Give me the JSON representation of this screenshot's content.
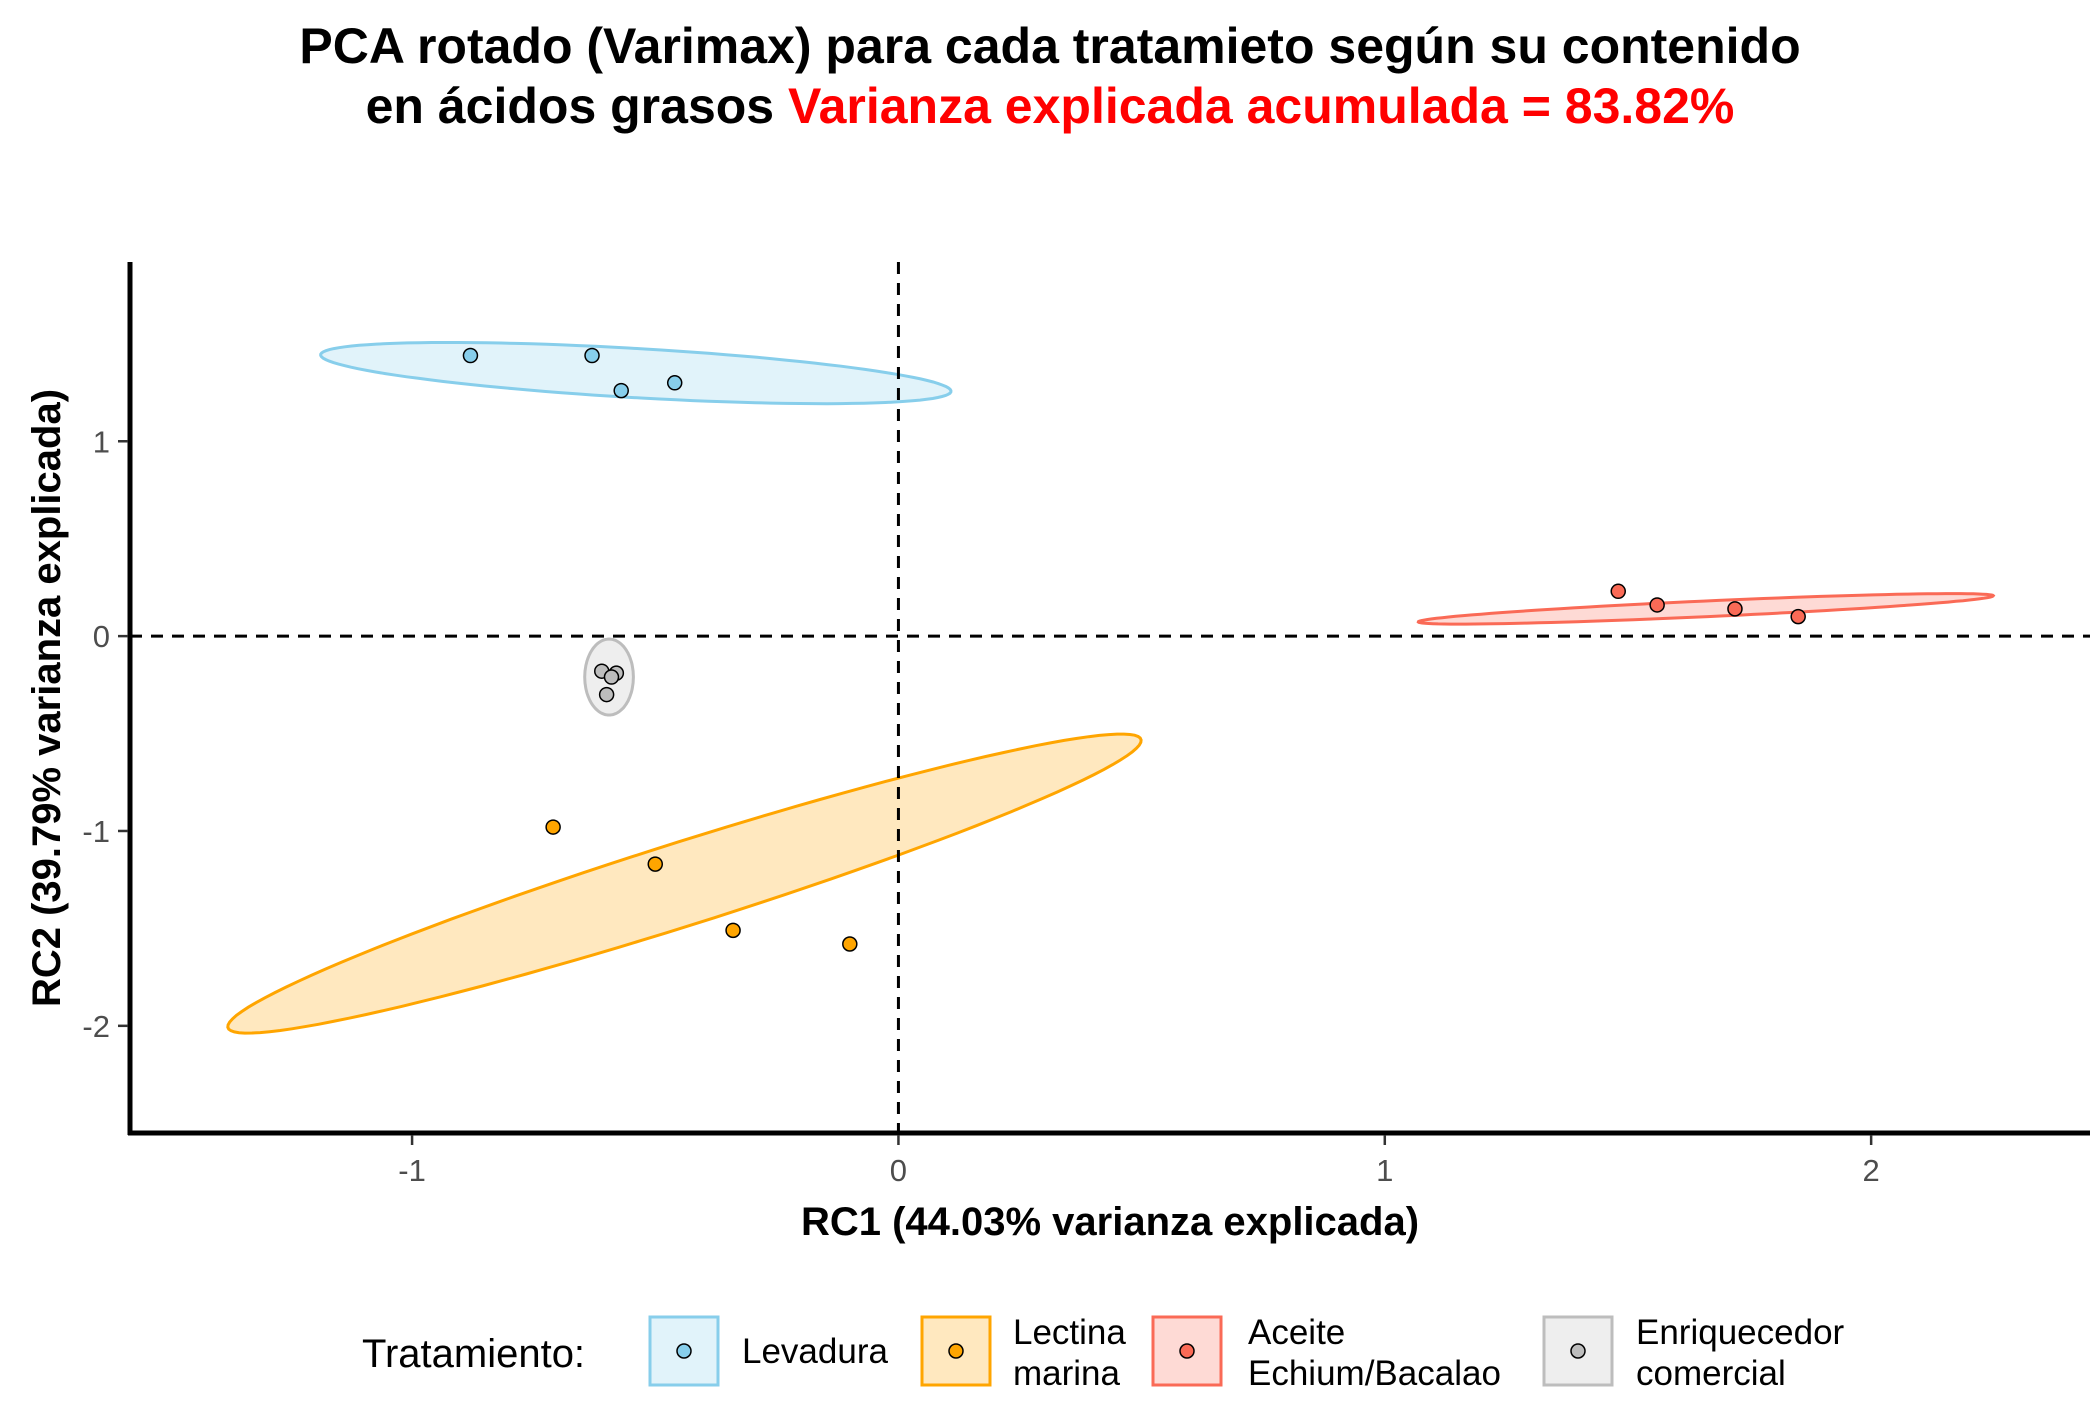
{
  "chart_data": {
    "type": "scatter",
    "title_line1": "PCA rotado (Varimax) para cada tratamieto según su contenido",
    "title_line2_black": "en ácidos grasos ",
    "title_line2_red": "Varianza explicada acumulada = 83.82%",
    "xlabel": "RC1 (44.03% varianza explicada)",
    "ylabel": "RC2 (39.79% varianza explicada)",
    "xlim": [
      -1.58,
      2.45
    ],
    "ylim": [
      -2.55,
      1.92
    ],
    "xticks": [
      -1,
      0,
      1,
      2
    ],
    "yticks": [
      -2,
      -1,
      0,
      1
    ],
    "reference_lines": {
      "x": 0,
      "y": 0,
      "style": "dashed"
    },
    "grid": false,
    "legend": {
      "title": "Tratamiento:",
      "position": "bottom"
    },
    "series": [
      {
        "name": "Levadura",
        "label_lines": [
          "Levadura"
        ],
        "color": "#87ceeb",
        "points": [
          [
            -0.88,
            1.44
          ],
          [
            -0.63,
            1.44
          ],
          [
            -0.57,
            1.26
          ],
          [
            -0.46,
            1.3
          ]
        ],
        "ellipse": {
          "center": [
            -0.54,
            1.35
          ],
          "rx": 0.655,
          "ry": 0.125,
          "angle_deg": -8.5
        }
      },
      {
        "name": "Lectina marina",
        "label_lines": [
          "Lectina",
          "marina"
        ],
        "color": "#ffa500",
        "points": [
          [
            -0.71,
            -0.98
          ],
          [
            -0.5,
            -1.17
          ],
          [
            -0.34,
            -1.51
          ],
          [
            -0.1,
            -1.58
          ]
        ],
        "ellipse": {
          "center": [
            -0.44,
            -1.27
          ],
          "rx": 1.2,
          "ry": 0.175,
          "angle_deg": 39
        }
      },
      {
        "name": "Aceite Echium/Bacalao",
        "label_lines": [
          "Aceite",
          "Echium/Bacalao"
        ],
        "color": "#fa6a56",
        "points": [
          [
            1.48,
            0.23
          ],
          [
            1.56,
            0.16
          ],
          [
            1.72,
            0.14
          ],
          [
            1.85,
            0.1
          ]
        ],
        "ellipse": {
          "center": [
            1.66,
            0.14
          ],
          "rx": 0.595,
          "ry": 0.04,
          "angle_deg": 6.5
        }
      },
      {
        "name": "Enriquecedor comercial",
        "label_lines": [
          "Enriquecedor",
          "comercial"
        ],
        "color": "#bdbdbd",
        "points": [
          [
            -0.61,
            -0.18
          ],
          [
            -0.58,
            -0.19
          ],
          [
            -0.6,
            -0.3
          ],
          [
            -0.59,
            -0.21
          ]
        ],
        "ellipse": {
          "center": [
            -0.595,
            -0.21
          ],
          "rx": 0.05,
          "ry": 0.195,
          "angle_deg": 0
        }
      }
    ]
  }
}
